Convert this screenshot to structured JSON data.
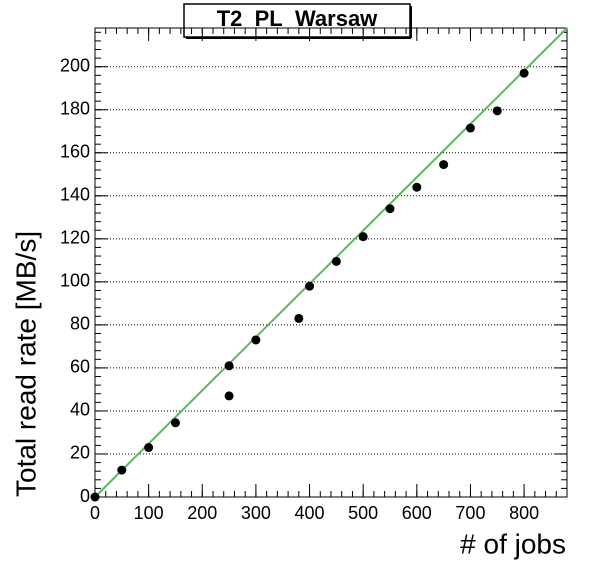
{
  "chart_data": {
    "type": "scatter",
    "title": "T2_PL_Warsaw",
    "xlabel": "# of jobs",
    "ylabel": "Total read rate [MB/s]",
    "x": [
      0,
      50,
      100,
      150,
      250,
      250,
      300,
      380,
      400,
      450,
      500,
      550,
      600,
      650,
      700,
      750,
      800
    ],
    "values": [
      0,
      12.5,
      23,
      34.5,
      61,
      47,
      73,
      83,
      98,
      109.5,
      121,
      134,
      144,
      154.5,
      171.5,
      179.5,
      197
    ],
    "color": "#000000",
    "fit": {
      "x": [
        0,
        880
      ],
      "values": [
        0,
        218
      ],
      "color": "#5cb85c"
    },
    "xlim": [
      0,
      880
    ],
    "ylim": [
      0,
      218
    ],
    "xticks": [
      0,
      100,
      200,
      300,
      400,
      500,
      600,
      700,
      800
    ],
    "yticks": [
      0,
      20,
      40,
      60,
      80,
      100,
      120,
      140,
      160,
      180,
      200
    ],
    "grid": true
  }
}
